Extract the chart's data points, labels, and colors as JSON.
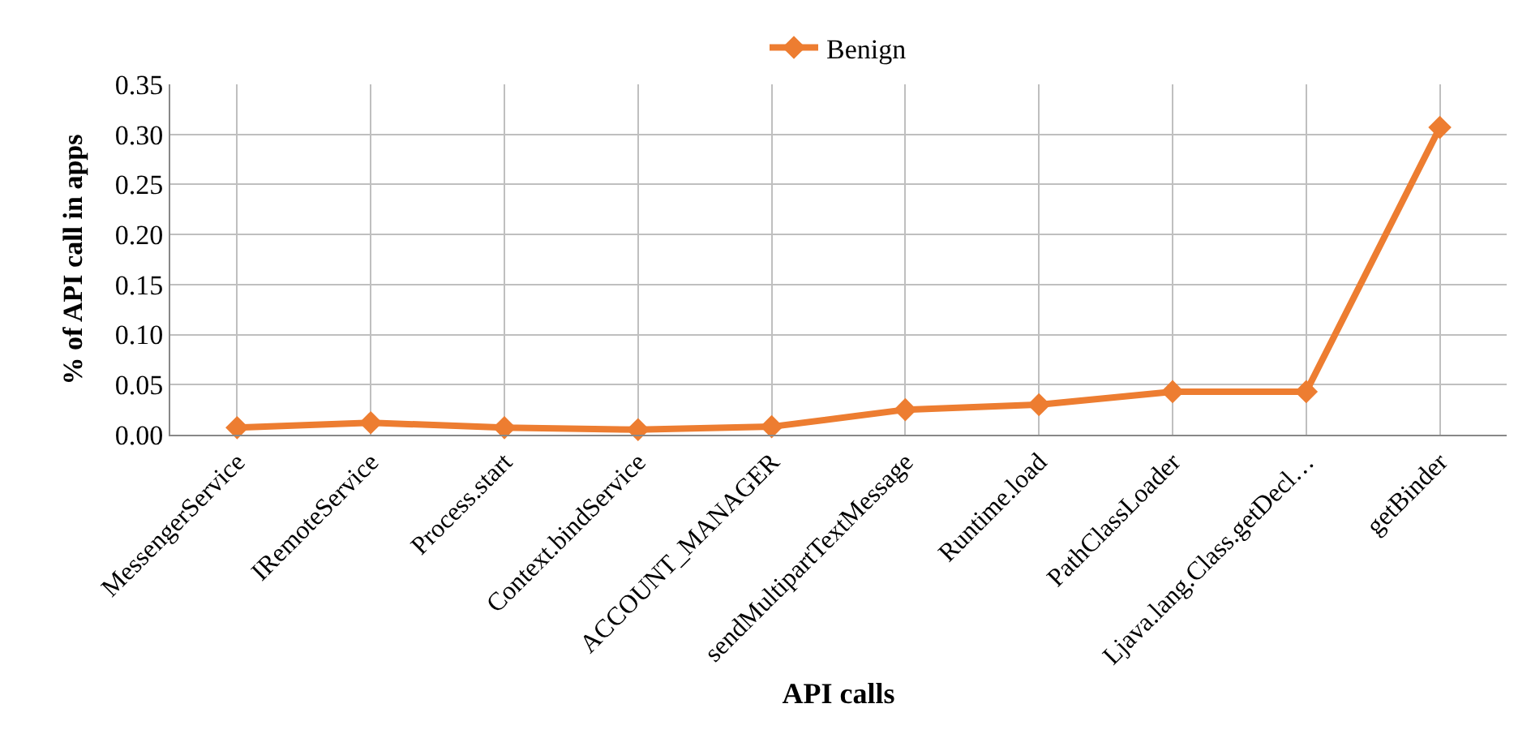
{
  "chart_data": {
    "type": "line",
    "xlabel": "API calls",
    "ylabel": "% of API call in apps",
    "categories": [
      "MessengerService",
      "IRemoteService",
      "Process.start",
      "Context.bindService",
      "ACCOUNT_MANAGER",
      "sendMultipartTextMessage",
      "Runtime.load",
      "PathClassLoader",
      "Ljava.lang.Class.getDecl…",
      "getBinder"
    ],
    "series": [
      {
        "name": "Benign",
        "color": "#ed7d31",
        "values": [
          0.007,
          0.012,
          0.007,
          0.005,
          0.008,
          0.025,
          0.03,
          0.043,
          0.043,
          0.307
        ]
      }
    ],
    "ylim": [
      0,
      0.35
    ],
    "yticks": [
      {
        "value": 0,
        "label": "0.00"
      },
      {
        "value": 0.05,
        "label": "0.05"
      },
      {
        "value": 0.1,
        "label": "0.10"
      },
      {
        "value": 0.15,
        "label": "0.15"
      },
      {
        "value": 0.2,
        "label": "0.20"
      },
      {
        "value": 0.25,
        "label": "0.25"
      },
      {
        "value": 0.3,
        "label": "0.30"
      },
      {
        "value": 0.35,
        "label": "0.35"
      }
    ],
    "grid": true,
    "legend": "top",
    "marker": "diamond",
    "line_style": "solid"
  }
}
